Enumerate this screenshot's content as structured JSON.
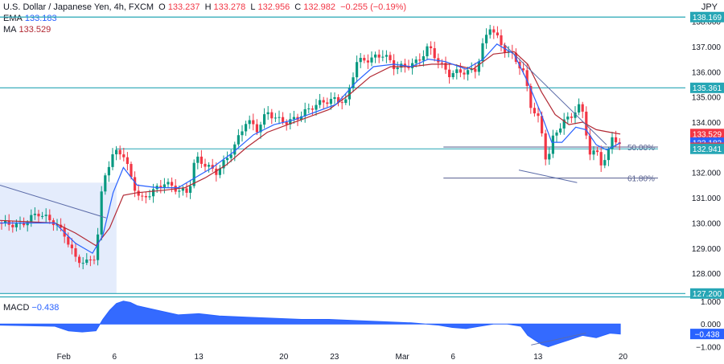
{
  "header": {
    "symbol_title": "U.S. Dollar / Japanese Yen, 4h, FXCM",
    "ohlc": {
      "o_label": "O",
      "o": "133.237",
      "h_label": "H",
      "h": "133.278",
      "l_label": "L",
      "l": "132.956",
      "c_label": "C",
      "c": "132.982",
      "change": "−0.255 (−0.19%)"
    },
    "ema_label": "EMA",
    "ema_value": "133.183",
    "ma_label": "MA",
    "ma_value": "133.529",
    "currency": "JPY"
  },
  "macd_legend": {
    "label": "MACD",
    "value": "−0.438"
  },
  "colors": {
    "up": "#089981",
    "down": "#f23645",
    "ema": "#2962ff",
    "ma": "#b22833",
    "level": "#26a6b5",
    "trend": "#5b6ba8",
    "fib": "#555e8e",
    "shade": "#dbe6fb",
    "macd": "#2962ff",
    "axis_text": "#131722"
  },
  "chart_data": [
    {
      "type": "candlestick",
      "title": "U.S. Dollar / Japanese Yen, 4h, FXCM",
      "ylim": [
        127.05,
        138.4
      ],
      "y_ticks": [
        128.0,
        129.0,
        130.0,
        131.0,
        132.0,
        133.0,
        134.0,
        135.0,
        136.0,
        137.0,
        138.0
      ],
      "y_tick_labels": [
        "128.000",
        "129.000",
        "130.000",
        "131.000",
        "132.000",
        "133.000",
        "134.000",
        "135.000",
        "136.000",
        "137.000",
        "138.000"
      ],
      "x_ticks": [
        {
          "label": "Feb",
          "pos": 0.093
        },
        {
          "label": "6",
          "pos": 0.167
        },
        {
          "label": "13",
          "pos": 0.29
        },
        {
          "label": "20",
          "pos": 0.414
        },
        {
          "label": "23",
          "pos": 0.488
        },
        {
          "label": "Mar",
          "pos": 0.587
        },
        {
          "label": "6",
          "pos": 0.661
        },
        {
          "label": "13",
          "pos": 0.785
        },
        {
          "label": "20",
          "pos": 0.909
        }
      ],
      "anchors": [
        [
          0.0,
          130.0
        ],
        [
          0.03,
          129.9
        ],
        [
          0.055,
          130.4
        ],
        [
          0.08,
          130.0
        ],
        [
          0.095,
          129.5
        ],
        [
          0.11,
          128.6
        ],
        [
          0.125,
          128.4
        ],
        [
          0.14,
          128.7
        ],
        [
          0.15,
          131.7
        ],
        [
          0.163,
          132.6
        ],
        [
          0.172,
          132.9
        ],
        [
          0.18,
          132.7
        ],
        [
          0.195,
          131.5
        ],
        [
          0.205,
          130.9
        ],
        [
          0.22,
          131.2
        ],
        [
          0.24,
          131.6
        ],
        [
          0.26,
          131.3
        ],
        [
          0.275,
          131.2
        ],
        [
          0.285,
          132.6
        ],
        [
          0.3,
          132.3
        ],
        [
          0.315,
          132.0
        ],
        [
          0.33,
          132.5
        ],
        [
          0.345,
          133.2
        ],
        [
          0.36,
          134.1
        ],
        [
          0.375,
          133.7
        ],
        [
          0.39,
          134.4
        ],
        [
          0.405,
          134.1
        ],
        [
          0.42,
          134.0
        ],
        [
          0.435,
          134.2
        ],
        [
          0.455,
          134.6
        ],
        [
          0.47,
          134.8
        ],
        [
          0.49,
          134.9
        ],
        [
          0.505,
          134.8
        ],
        [
          0.52,
          136.4
        ],
        [
          0.54,
          136.5
        ],
        [
          0.56,
          136.7
        ],
        [
          0.575,
          136.2
        ],
        [
          0.59,
          136.2
        ],
        [
          0.61,
          136.4
        ],
        [
          0.625,
          137.0
        ],
        [
          0.64,
          136.4
        ],
        [
          0.655,
          135.9
        ],
        [
          0.67,
          136.0
        ],
        [
          0.685,
          136.0
        ],
        [
          0.695,
          136.1
        ],
        [
          0.705,
          137.1
        ],
        [
          0.715,
          137.8
        ],
        [
          0.722,
          137.5
        ],
        [
          0.735,
          136.9
        ],
        [
          0.75,
          136.6
        ],
        [
          0.765,
          135.9
        ],
        [
          0.775,
          134.6
        ],
        [
          0.788,
          134.0
        ],
        [
          0.798,
          132.3
        ],
        [
          0.808,
          133.5
        ],
        [
          0.822,
          134.0
        ],
        [
          0.835,
          134.3
        ],
        [
          0.848,
          134.7
        ],
        [
          0.856,
          133.5
        ],
        [
          0.862,
          132.5
        ],
        [
          0.87,
          133.0
        ],
        [
          0.878,
          132.3
        ],
        [
          0.885,
          132.5
        ],
        [
          0.893,
          133.5
        ],
        [
          0.9,
          133.2
        ],
        [
          0.905,
          132.98
        ]
      ],
      "ema_line": [
        [
          0.0,
          130.0
        ],
        [
          0.08,
          130.0
        ],
        [
          0.11,
          129.2
        ],
        [
          0.135,
          128.8
        ],
        [
          0.15,
          129.5
        ],
        [
          0.165,
          131.2
        ],
        [
          0.18,
          132.2
        ],
        [
          0.2,
          131.5
        ],
        [
          0.23,
          131.4
        ],
        [
          0.26,
          131.4
        ],
        [
          0.285,
          131.8
        ],
        [
          0.31,
          132.2
        ],
        [
          0.34,
          132.8
        ],
        [
          0.37,
          133.5
        ],
        [
          0.4,
          133.9
        ],
        [
          0.43,
          134.1
        ],
        [
          0.46,
          134.4
        ],
        [
          0.49,
          134.7
        ],
        [
          0.52,
          135.6
        ],
        [
          0.545,
          136.2
        ],
        [
          0.575,
          136.3
        ],
        [
          0.6,
          136.2
        ],
        [
          0.625,
          136.5
        ],
        [
          0.65,
          136.4
        ],
        [
          0.68,
          136.1
        ],
        [
          0.705,
          136.5
        ],
        [
          0.725,
          137.1
        ],
        [
          0.75,
          136.7
        ],
        [
          0.77,
          135.6
        ],
        [
          0.79,
          134.3
        ],
        [
          0.805,
          133.2
        ],
        [
          0.82,
          133.2
        ],
        [
          0.84,
          133.8
        ],
        [
          0.855,
          133.7
        ],
        [
          0.87,
          133.1
        ],
        [
          0.885,
          132.9
        ],
        [
          0.9,
          133.1
        ],
        [
          0.905,
          133.18
        ]
      ],
      "ma_line": [
        [
          0.0,
          130.1
        ],
        [
          0.08,
          130.0
        ],
        [
          0.11,
          129.6
        ],
        [
          0.14,
          129.1
        ],
        [
          0.16,
          129.8
        ],
        [
          0.18,
          131.1
        ],
        [
          0.2,
          131.2
        ],
        [
          0.24,
          131.3
        ],
        [
          0.27,
          131.4
        ],
        [
          0.3,
          131.8
        ],
        [
          0.33,
          132.3
        ],
        [
          0.36,
          133.0
        ],
        [
          0.39,
          133.6
        ],
        [
          0.42,
          133.9
        ],
        [
          0.45,
          134.2
        ],
        [
          0.48,
          134.5
        ],
        [
          0.51,
          135.1
        ],
        [
          0.54,
          135.8
        ],
        [
          0.57,
          136.2
        ],
        [
          0.6,
          136.2
        ],
        [
          0.63,
          136.3
        ],
        [
          0.66,
          136.3
        ],
        [
          0.69,
          136.1
        ],
        [
          0.72,
          136.7
        ],
        [
          0.75,
          136.8
        ],
        [
          0.77,
          136.3
        ],
        [
          0.79,
          135.2
        ],
        [
          0.81,
          134.3
        ],
        [
          0.83,
          133.9
        ],
        [
          0.85,
          134.0
        ],
        [
          0.87,
          133.7
        ],
        [
          0.89,
          133.6
        ],
        [
          0.905,
          133.53
        ]
      ],
      "horizontal_levels": [
        138.169,
        135.361,
        127.2
      ],
      "support_line": {
        "x": [
          0.17,
          0.96
        ],
        "y": 132.941
      },
      "fib_lines": [
        {
          "x": [
            0.647,
            0.96
          ],
          "y": 133.01,
          "label": "50.00%"
        },
        {
          "x": [
            0.647,
            0.96
          ],
          "y": 131.78,
          "label": "61.80%"
        }
      ],
      "trendlines": [
        {
          "points": [
            [
              0.0,
              131.5
            ],
            [
              0.155,
              130.2
            ]
          ]
        },
        {
          "points": [
            [
              0.735,
              137.1
            ],
            [
              0.885,
              133.1
            ]
          ]
        },
        {
          "points": [
            [
              0.757,
              132.1
            ],
            [
              0.842,
              131.6
            ]
          ]
        }
      ],
      "shaded_zone": {
        "x": [
          0.0,
          0.17
        ],
        "y": [
          127.2,
          131.6
        ]
      },
      "price_badges": [
        {
          "value": 138.169,
          "label": "138.169",
          "color": "#26a6b5"
        },
        {
          "value": 135.361,
          "label": "135.361",
          "color": "#26a6b5"
        },
        {
          "value": 133.529,
          "label": "133.529",
          "color": "#f23645"
        },
        {
          "value": 133.183,
          "label": "133.183",
          "color": "#2962ff"
        },
        {
          "value": 132.982,
          "label": "132.982",
          "color": "#f23645"
        },
        {
          "value": 132.941,
          "label": "132.941",
          "color": "#26a6b5"
        },
        {
          "value": 127.2,
          "label": "127.200",
          "color": "#26a6b5"
        }
      ]
    },
    {
      "type": "area",
      "title": "MACD",
      "ylim": [
        -1.05,
        1.1
      ],
      "y_ticks": [
        1.0,
        0.0,
        -1.0
      ],
      "y_tick_labels": [
        "1.000",
        "0.000",
        "−1.000"
      ],
      "current_label": "−0.438",
      "x": [
        0.0,
        0.08,
        0.1,
        0.12,
        0.14,
        0.15,
        0.16,
        0.17,
        0.18,
        0.19,
        0.2,
        0.23,
        0.26,
        0.29,
        0.32,
        0.36,
        0.4,
        0.44,
        0.48,
        0.52,
        0.56,
        0.6,
        0.64,
        0.66,
        0.68,
        0.7,
        0.72,
        0.74,
        0.76,
        0.77,
        0.78,
        0.79,
        0.8,
        0.81,
        0.82,
        0.83,
        0.85,
        0.87,
        0.88,
        0.89,
        0.905
      ],
      "values": [
        -0.05,
        -0.1,
        -0.3,
        -0.35,
        -0.3,
        0.2,
        0.6,
        0.9,
        1.0,
        0.95,
        0.8,
        0.6,
        0.4,
        0.45,
        0.35,
        0.3,
        0.25,
        0.2,
        0.2,
        0.15,
        0.1,
        0.05,
        -0.05,
        -0.15,
        -0.2,
        -0.1,
        0.0,
        0.0,
        -0.1,
        -0.5,
        -0.7,
        -0.9,
        -1.0,
        -0.9,
        -0.8,
        -0.7,
        -0.5,
        -0.6,
        -0.5,
        -0.4,
        -0.44
      ],
      "trendline": {
        "points": [
          [
            0.775,
            -0.92
          ],
          [
            0.855,
            -0.4
          ]
        ]
      }
    }
  ]
}
